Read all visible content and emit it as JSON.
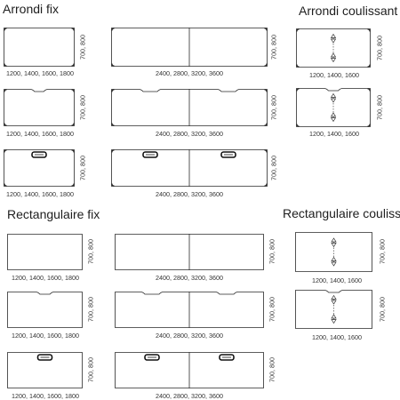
{
  "sections": {
    "arrondi_fix": "Arrondi fix",
    "arrondi_coulissant": "Arrondi coulissant",
    "rectangulaire_fix": "Rectangulaire fix",
    "rectangulaire_coulissant": "Rectangulaire coulissant"
  },
  "labels": {
    "single_widths": "1200, 1400, 1600, 1800",
    "double_widths": "2400, 2800, 3200, 3600",
    "sliding_widths": "1200, 1400, 1600",
    "depths": "700, 800"
  },
  "diagram": {
    "tables": [
      {
        "id": "af-single-plain",
        "section": "arrondi_fix",
        "shape": "rounded",
        "split": false,
        "cutout": "none"
      },
      {
        "id": "af-double-plain",
        "section": "arrondi_fix",
        "shape": "rounded",
        "split": true,
        "cutout": "none"
      },
      {
        "id": "af-single-notch",
        "section": "arrondi_fix",
        "shape": "rounded",
        "split": false,
        "cutout": "notch"
      },
      {
        "id": "af-double-notch",
        "section": "arrondi_fix",
        "shape": "rounded",
        "split": true,
        "cutout": "notch"
      },
      {
        "id": "af-single-grommet",
        "section": "arrondi_fix",
        "shape": "rounded",
        "split": false,
        "cutout": "grommet"
      },
      {
        "id": "af-double-grommet",
        "section": "arrondi_fix",
        "shape": "rounded",
        "split": true,
        "cutout": "grommet"
      },
      {
        "id": "ac-slide-plain",
        "section": "arrondi_coulissant",
        "shape": "rounded",
        "split": false,
        "cutout": "slide"
      },
      {
        "id": "ac-slide-notch",
        "section": "arrondi_coulissant",
        "shape": "rounded",
        "split": false,
        "cutout": "slide-notch"
      },
      {
        "id": "rf-single-plain",
        "section": "rectangulaire_fix",
        "shape": "rect",
        "split": false,
        "cutout": "none"
      },
      {
        "id": "rf-double-plain",
        "section": "rectangulaire_fix",
        "shape": "rect",
        "split": true,
        "cutout": "none"
      },
      {
        "id": "rf-single-notch",
        "section": "rectangulaire_fix",
        "shape": "rect",
        "split": false,
        "cutout": "notch"
      },
      {
        "id": "rf-double-notch",
        "section": "rectangulaire_fix",
        "shape": "rect",
        "split": true,
        "cutout": "notch"
      },
      {
        "id": "rf-single-grommet",
        "section": "rectangulaire_fix",
        "shape": "rect",
        "split": false,
        "cutout": "grommet"
      },
      {
        "id": "rf-double-grommet",
        "section": "rectangulaire_fix",
        "shape": "rect",
        "split": true,
        "cutout": "grommet"
      },
      {
        "id": "rc-slide-plain",
        "section": "rectangulaire_coulissant",
        "shape": "rect",
        "split": false,
        "cutout": "slide"
      },
      {
        "id": "rc-slide-notch",
        "section": "rectangulaire_coulissant",
        "shape": "rect",
        "split": false,
        "cutout": "slide-notch"
      }
    ]
  }
}
